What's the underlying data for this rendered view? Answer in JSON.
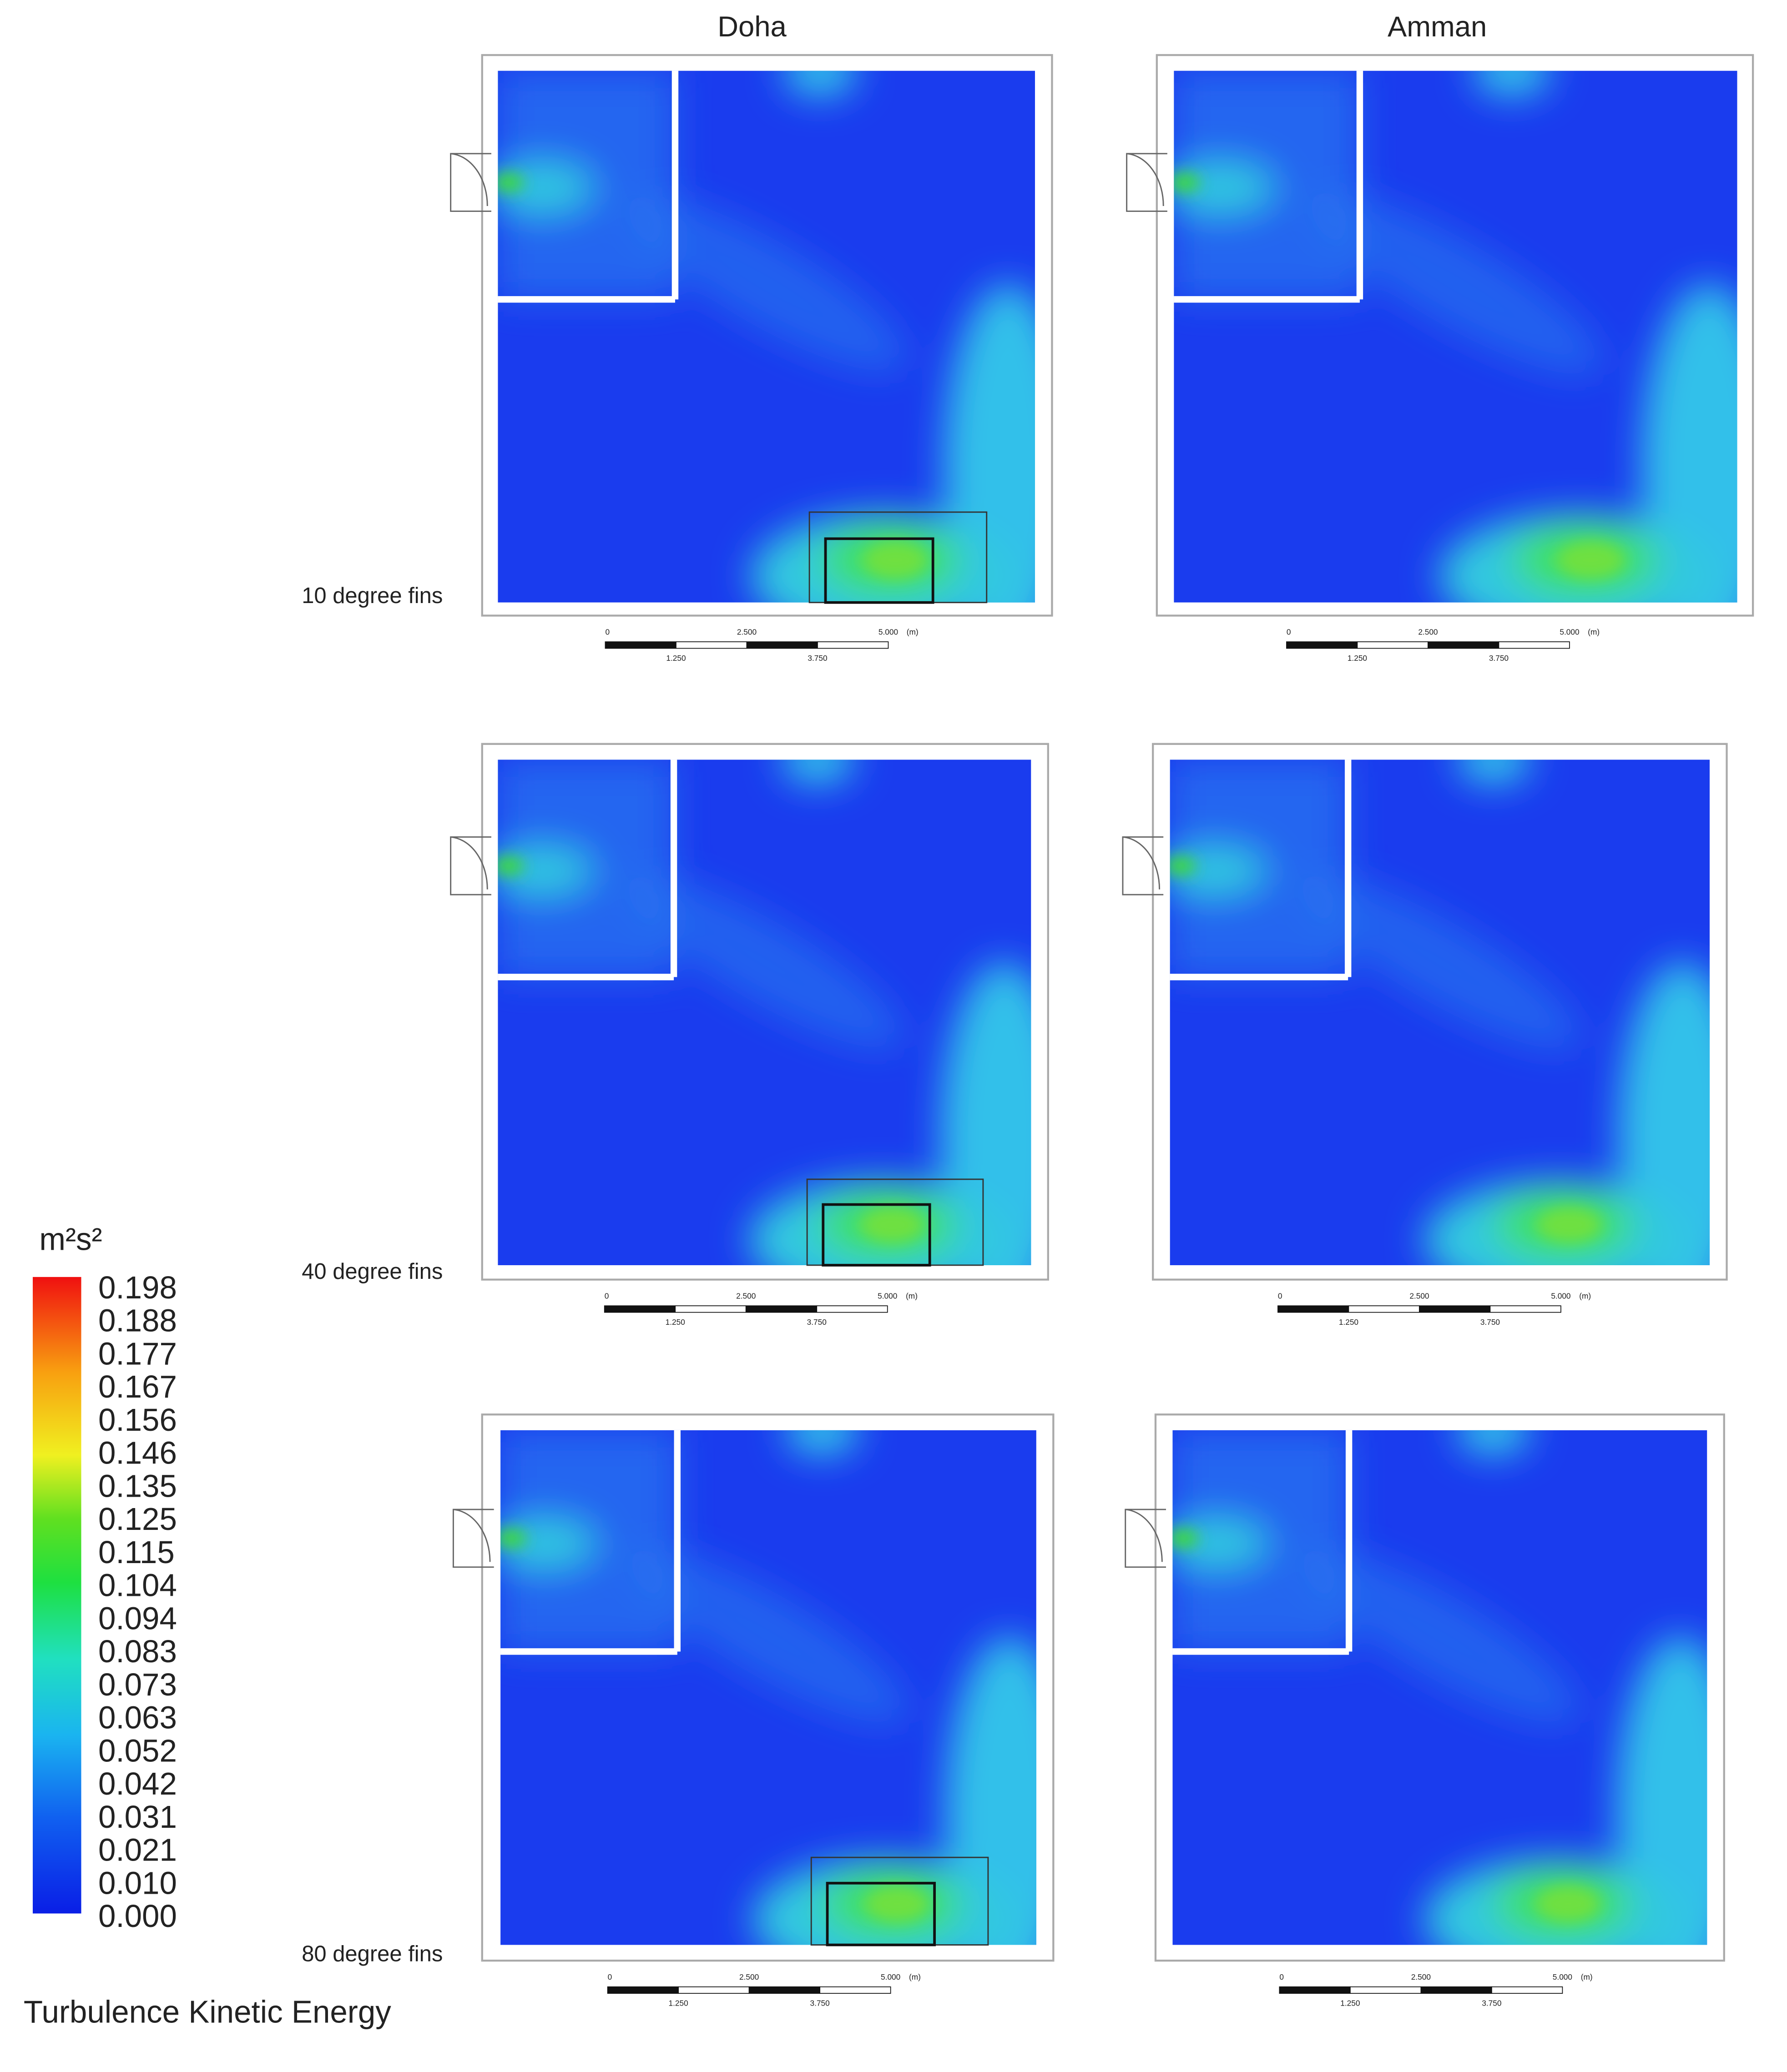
{
  "column_titles": [
    "Doha",
    "Amman"
  ],
  "row_labels": [
    "10 degree fins",
    "40 degree fins",
    "80 degree fins"
  ],
  "colorbar": {
    "unit": "m²s²",
    "ticks": [
      "0.198",
      "0.188",
      "0.177",
      "0.167",
      "0.156",
      "0.146",
      "0.135",
      "0.125",
      "0.115",
      "0.104",
      "0.094",
      "0.083",
      "0.073",
      "0.063",
      "0.052",
      "0.042",
      "0.031",
      "0.021",
      "0.010",
      "0.000"
    ],
    "title": "Turbulence Kinetic Energy"
  },
  "scale_bar": {
    "labels_top": [
      "0",
      "2.500",
      "5.000"
    ],
    "unit": "(m)",
    "labels_bottom": [
      "1.250",
      "3.750"
    ]
  }
}
